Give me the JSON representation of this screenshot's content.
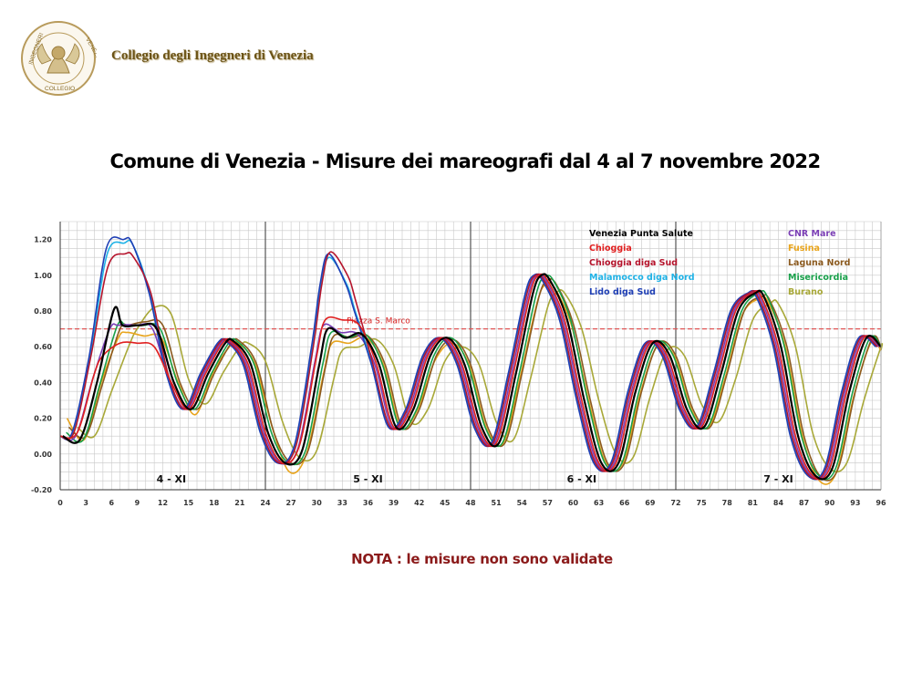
{
  "header": {
    "organization": "Collegio degli Ingegneri di Venezia",
    "logo_text_left": "INGEGNERI",
    "logo_text_right": "VENEZIA",
    "logo_text_bottom": "COLLEGIO"
  },
  "page_title": "Comune di Venezia  -  Misure dei mareografi dal 4 al 7 novembre 2022",
  "note": "NOTA :  le misure non sono validate",
  "chart_data": {
    "type": "line",
    "title": "Comune di Venezia  -  Misure dei mareografi dal 4 al 7 novembre 2022",
    "xlim": [
      0,
      96
    ],
    "ylim": [
      -0.2,
      1.3
    ],
    "x_ticks": [
      0,
      3,
      6,
      9,
      12,
      15,
      18,
      21,
      24,
      27,
      30,
      33,
      36,
      39,
      42,
      45,
      48,
      51,
      54,
      57,
      60,
      63,
      66,
      69,
      72,
      75,
      78,
      81,
      84,
      87,
      90,
      93,
      96
    ],
    "y_ticks": [
      -0.2,
      0.0,
      0.2,
      0.4,
      0.6,
      0.8,
      1.0,
      1.2
    ],
    "y_tick_labels": [
      "-0.20",
      "0.00",
      "0.20",
      "0.40",
      "0.60",
      "0.80",
      "1.00",
      "1.20"
    ],
    "grid": true,
    "day_separators": [
      24,
      48,
      72
    ],
    "day_labels": [
      {
        "text": "4 - XI",
        "x": 13
      },
      {
        "text": "5 - XI",
        "x": 36
      },
      {
        "text": "6 - XI",
        "x": 61
      },
      {
        "text": "7 - XI",
        "x": 84
      }
    ],
    "reference_line": {
      "y": 0.7,
      "label": "Piazza S. Marco",
      "color": "#e05555"
    },
    "legend_position": "top-right (two columns)",
    "series": [
      {
        "name": "Venezia Punta Salute",
        "color": "#000000",
        "shift": 0.3,
        "x": [
          0,
          2,
          4,
          6,
          7,
          9,
          11,
          13,
          15,
          17,
          19,
          20,
          22,
          24,
          26,
          28,
          30,
          31,
          33,
          35,
          37,
          39,
          41,
          43,
          45,
          47,
          49,
          51,
          53,
          55,
          56,
          57,
          59,
          61,
          63,
          65,
          67,
          69,
          71,
          73,
          75,
          77,
          79,
          81,
          82,
          84,
          86,
          88,
          90,
          92,
          94,
          96
        ],
        "y": [
          0.1,
          0.08,
          0.4,
          0.81,
          0.72,
          0.72,
          0.7,
          0.4,
          0.25,
          0.45,
          0.62,
          0.63,
          0.5,
          0.12,
          -0.05,
          0.02,
          0.5,
          0.7,
          0.65,
          0.67,
          0.5,
          0.15,
          0.25,
          0.55,
          0.65,
          0.5,
          0.15,
          0.06,
          0.45,
          0.9,
          1.0,
          0.97,
          0.75,
          0.3,
          -0.05,
          -0.05,
          0.35,
          0.62,
          0.55,
          0.25,
          0.15,
          0.45,
          0.8,
          0.9,
          0.88,
          0.6,
          0.1,
          -0.12,
          -0.08,
          0.35,
          0.65,
          0.6
        ]
      },
      {
        "name": "Chioggia",
        "color": "#e01f1f",
        "shift": 0.0,
        "x": [
          0,
          2,
          4,
          5,
          7,
          9,
          11,
          13,
          15,
          17,
          19,
          20,
          22,
          24,
          26,
          28,
          30,
          31,
          33,
          35,
          37,
          39,
          41,
          43,
          45,
          47,
          49,
          51,
          53,
          55,
          56,
          57,
          59,
          61,
          63,
          65,
          67,
          69,
          71,
          73,
          75,
          77,
          79,
          81,
          82,
          84,
          86,
          88,
          90,
          92,
          94,
          96
        ],
        "y": [
          0.1,
          0.12,
          0.45,
          0.55,
          0.62,
          0.62,
          0.6,
          0.4,
          0.25,
          0.45,
          0.62,
          0.63,
          0.5,
          0.12,
          -0.05,
          0.05,
          0.55,
          0.75,
          0.75,
          0.72,
          0.5,
          0.15,
          0.25,
          0.55,
          0.65,
          0.5,
          0.15,
          0.06,
          0.45,
          0.9,
          1.0,
          0.97,
          0.75,
          0.3,
          -0.05,
          -0.05,
          0.35,
          0.62,
          0.55,
          0.25,
          0.15,
          0.45,
          0.8,
          0.9,
          0.88,
          0.6,
          0.1,
          -0.12,
          -0.08,
          0.35,
          0.65,
          0.6
        ]
      },
      {
        "name": "Chioggia diga Sud",
        "color": "#b5142c",
        "shift": -0.4,
        "x": [
          0,
          2,
          4,
          6,
          8,
          9,
          11,
          13,
          15,
          17,
          19,
          20,
          22,
          24,
          26,
          28,
          30,
          31,
          32,
          34,
          35,
          37,
          39,
          41,
          43,
          45,
          47,
          49,
          51,
          53,
          55,
          56,
          57,
          59,
          61,
          63,
          65,
          67,
          69,
          71,
          73,
          75,
          77,
          79,
          81,
          82,
          84,
          86,
          88,
          90,
          92,
          94,
          96
        ],
        "y": [
          0.1,
          0.12,
          0.55,
          1.05,
          1.12,
          1.1,
          0.9,
          0.45,
          0.25,
          0.45,
          0.62,
          0.63,
          0.5,
          0.12,
          -0.05,
          0.05,
          0.6,
          0.95,
          1.13,
          1.0,
          0.85,
          0.5,
          0.15,
          0.25,
          0.55,
          0.65,
          0.5,
          0.15,
          0.06,
          0.45,
          0.9,
          1.0,
          0.97,
          0.75,
          0.3,
          -0.05,
          -0.05,
          0.35,
          0.62,
          0.55,
          0.25,
          0.15,
          0.45,
          0.8,
          0.9,
          0.88,
          0.6,
          0.1,
          -0.12,
          -0.08,
          0.35,
          0.65,
          0.6
        ]
      },
      {
        "name": "Malamocco diga Nord",
        "color": "#1fb2e6",
        "shift": -0.5,
        "x": [
          0,
          2,
          4,
          6,
          8,
          9,
          11,
          13,
          15,
          17,
          19,
          20,
          22,
          24,
          26,
          28,
          30,
          31,
          32,
          34,
          35,
          37,
          39,
          41,
          43,
          45,
          47,
          49,
          51,
          53,
          55,
          56,
          57,
          59,
          61,
          63,
          65,
          67,
          69,
          71,
          73,
          75,
          77,
          79,
          81,
          82,
          84,
          86,
          88,
          90,
          92,
          94,
          96
        ],
        "y": [
          0.1,
          0.12,
          0.55,
          1.12,
          1.18,
          1.17,
          0.9,
          0.45,
          0.25,
          0.45,
          0.62,
          0.63,
          0.5,
          0.12,
          -0.05,
          0.05,
          0.6,
          0.95,
          1.1,
          0.95,
          0.8,
          0.5,
          0.15,
          0.25,
          0.55,
          0.65,
          0.5,
          0.15,
          0.06,
          0.45,
          0.9,
          1.0,
          0.97,
          0.75,
          0.3,
          -0.05,
          -0.05,
          0.35,
          0.62,
          0.55,
          0.25,
          0.15,
          0.45,
          0.8,
          0.9,
          0.88,
          0.6,
          0.1,
          -0.12,
          -0.08,
          0.35,
          0.65,
          0.6
        ]
      },
      {
        "name": "Lido diga Sud",
        "color": "#1f3fb5",
        "shift": -0.6,
        "x": [
          0,
          2,
          4,
          6,
          8,
          9,
          11,
          13,
          15,
          17,
          19,
          20,
          22,
          24,
          26,
          28,
          30,
          31,
          32,
          34,
          35,
          37,
          39,
          41,
          43,
          45,
          47,
          49,
          51,
          53,
          55,
          56,
          57,
          59,
          61,
          63,
          65,
          67,
          69,
          71,
          73,
          75,
          77,
          79,
          81,
          82,
          84,
          86,
          88,
          90,
          92,
          94,
          96
        ],
        "y": [
          0.1,
          0.12,
          0.55,
          1.15,
          1.2,
          1.18,
          0.9,
          0.45,
          0.25,
          0.45,
          0.62,
          0.63,
          0.5,
          0.12,
          -0.05,
          0.05,
          0.6,
          0.95,
          1.12,
          0.95,
          0.8,
          0.5,
          0.15,
          0.25,
          0.55,
          0.65,
          0.5,
          0.15,
          0.06,
          0.45,
          0.9,
          1.0,
          0.97,
          0.75,
          0.3,
          -0.05,
          -0.05,
          0.35,
          0.62,
          0.55,
          0.25,
          0.15,
          0.45,
          0.8,
          0.9,
          0.88,
          0.6,
          0.1,
          -0.12,
          -0.08,
          0.35,
          0.65,
          0.6
        ]
      },
      {
        "name": "CNR Mare",
        "color": "#7b3fb5",
        "shift": -0.2,
        "x": [
          0,
          2,
          4,
          6,
          7,
          9,
          11,
          13,
          15,
          17,
          19,
          20,
          22,
          24,
          26,
          28,
          30,
          31,
          33,
          35,
          37,
          39,
          41,
          43,
          45,
          47,
          49,
          51,
          53,
          55,
          56,
          57,
          59,
          61,
          63,
          65,
          67,
          69,
          71,
          73,
          75,
          77,
          79,
          81,
          82,
          84,
          86,
          88,
          90,
          92,
          94,
          96
        ],
        "y": [
          0.1,
          0.1,
          0.42,
          0.7,
          0.72,
          0.72,
          0.7,
          0.4,
          0.25,
          0.45,
          0.62,
          0.63,
          0.5,
          0.12,
          -0.05,
          0.03,
          0.52,
          0.72,
          0.68,
          0.67,
          0.5,
          0.15,
          0.25,
          0.55,
          0.65,
          0.5,
          0.15,
          0.06,
          0.45,
          0.9,
          1.0,
          0.97,
          0.75,
          0.3,
          -0.05,
          -0.05,
          0.35,
          0.62,
          0.55,
          0.25,
          0.15,
          0.45,
          0.8,
          0.9,
          0.88,
          0.6,
          0.1,
          -0.12,
          -0.08,
          0.35,
          0.65,
          0.6
        ]
      },
      {
        "name": "Fusina",
        "color": "#e8a41c",
        "shift": 0.8,
        "x": [
          0,
          2,
          4,
          6,
          7,
          9,
          11,
          13,
          15,
          17,
          19,
          20,
          22,
          24,
          26,
          28,
          30,
          31,
          33,
          35,
          37,
          39,
          41,
          43,
          45,
          47,
          49,
          51,
          53,
          55,
          56,
          57,
          59,
          61,
          63,
          65,
          67,
          69,
          71,
          73,
          75,
          77,
          79,
          81,
          82,
          84,
          86,
          88,
          90,
          92,
          94,
          96
        ],
        "y": [
          0.2,
          0.08,
          0.4,
          0.65,
          0.68,
          0.66,
          0.65,
          0.4,
          0.22,
          0.45,
          0.6,
          0.62,
          0.5,
          0.15,
          -0.1,
          0.0,
          0.45,
          0.62,
          0.62,
          0.65,
          0.5,
          0.15,
          0.25,
          0.52,
          0.62,
          0.5,
          0.15,
          0.06,
          0.43,
          0.85,
          0.95,
          0.93,
          0.72,
          0.3,
          -0.05,
          -0.05,
          0.33,
          0.6,
          0.55,
          0.25,
          0.15,
          0.43,
          0.78,
          0.87,
          0.85,
          0.6,
          0.1,
          -0.15,
          -0.1,
          0.32,
          0.62,
          0.58
        ]
      },
      {
        "name": "Laguna Nord",
        "color": "#8b5a1f",
        "shift": 1.0,
        "x": [
          0,
          2,
          4,
          6,
          7,
          9,
          11,
          13,
          15,
          17,
          19,
          20,
          22,
          24,
          26,
          28,
          30,
          31,
          33,
          35,
          37,
          39,
          41,
          43,
          45,
          47,
          49,
          51,
          53,
          55,
          56,
          57,
          59,
          61,
          63,
          65,
          67,
          69,
          71,
          73,
          75,
          77,
          79,
          81,
          82,
          84,
          86,
          88,
          90,
          92,
          94,
          96
        ],
        "y": [
          0.15,
          0.1,
          0.4,
          0.7,
          0.72,
          0.74,
          0.72,
          0.4,
          0.25,
          0.45,
          0.62,
          0.63,
          0.5,
          0.12,
          -0.05,
          0.02,
          0.48,
          0.66,
          0.65,
          0.66,
          0.5,
          0.15,
          0.25,
          0.55,
          0.64,
          0.5,
          0.15,
          0.06,
          0.45,
          0.88,
          0.97,
          0.95,
          0.73,
          0.3,
          -0.05,
          -0.05,
          0.35,
          0.62,
          0.55,
          0.25,
          0.15,
          0.45,
          0.8,
          0.88,
          0.86,
          0.6,
          0.1,
          -0.13,
          -0.08,
          0.35,
          0.65,
          0.6
        ]
      },
      {
        "name": "Misericordia",
        "color": "#18a04a",
        "shift": 0.7,
        "x": [
          0,
          2,
          4,
          6,
          7,
          9,
          11,
          13,
          15,
          17,
          19,
          20,
          22,
          24,
          26,
          28,
          30,
          31,
          33,
          35,
          37,
          39,
          41,
          43,
          45,
          47,
          49,
          51,
          53,
          55,
          56,
          57,
          59,
          61,
          63,
          65,
          67,
          69,
          71,
          73,
          75,
          77,
          79,
          81,
          82,
          84,
          86,
          88,
          90,
          92,
          94,
          96
        ],
        "y": [
          0.12,
          0.08,
          0.4,
          0.72,
          0.72,
          0.72,
          0.7,
          0.4,
          0.25,
          0.45,
          0.62,
          0.63,
          0.5,
          0.12,
          -0.05,
          0.02,
          0.5,
          0.68,
          0.65,
          0.67,
          0.5,
          0.15,
          0.25,
          0.55,
          0.65,
          0.5,
          0.15,
          0.06,
          0.45,
          0.9,
          0.99,
          0.97,
          0.75,
          0.3,
          -0.05,
          -0.05,
          0.35,
          0.62,
          0.55,
          0.25,
          0.15,
          0.45,
          0.8,
          0.9,
          0.88,
          0.6,
          0.1,
          -0.12,
          -0.08,
          0.35,
          0.65,
          0.6
        ]
      },
      {
        "name": "Burano",
        "color": "#a8a838",
        "shift": 2.0,
        "x": [
          0,
          2,
          4,
          6,
          7,
          9,
          11,
          13,
          15,
          17,
          19,
          20,
          22,
          24,
          26,
          28,
          30,
          31,
          33,
          35,
          37,
          39,
          41,
          43,
          45,
          47,
          49,
          51,
          53,
          55,
          56,
          57,
          59,
          61,
          63,
          65,
          67,
          69,
          71,
          73,
          75,
          77,
          79,
          81,
          82,
          84,
          86,
          88,
          90,
          92,
          94,
          96
        ],
        "y": [
          0.15,
          0.1,
          0.35,
          0.6,
          0.7,
          0.82,
          0.78,
          0.42,
          0.28,
          0.45,
          0.6,
          0.62,
          0.52,
          0.18,
          -0.02,
          0.02,
          0.42,
          0.58,
          0.6,
          0.64,
          0.5,
          0.18,
          0.25,
          0.52,
          0.6,
          0.5,
          0.18,
          0.08,
          0.42,
          0.82,
          0.9,
          0.9,
          0.7,
          0.3,
          0.0,
          -0.02,
          0.32,
          0.58,
          0.55,
          0.28,
          0.18,
          0.42,
          0.75,
          0.84,
          0.84,
          0.6,
          0.12,
          -0.08,
          -0.05,
          0.3,
          0.6,
          0.58
        ]
      }
    ]
  }
}
